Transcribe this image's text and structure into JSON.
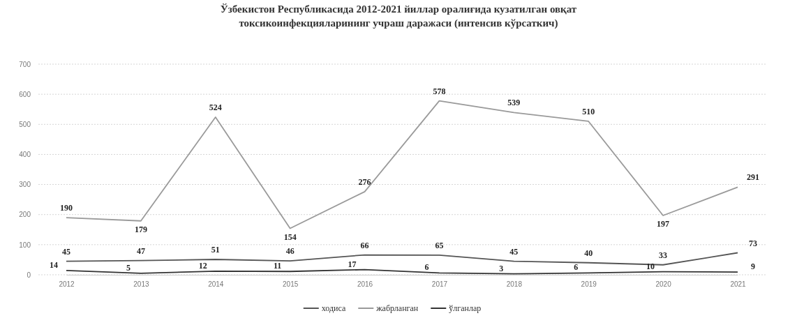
{
  "chart_data": {
    "type": "line",
    "title": "Ўзбекистон Республикасида 2012-2021 йиллар оралиғида кузатилган овқат токсикоинфекцияларининг учраш даражаси (интенсив кўрсаткич)",
    "categories": [
      "2012",
      "2013",
      "2014",
      "2015",
      "2016",
      "2017",
      "2018",
      "2019",
      "2020",
      "2021"
    ],
    "series": [
      {
        "name": "ходиса",
        "color": "#555555",
        "values": [
          45,
          47,
          51,
          46,
          66,
          65,
          45,
          40,
          33,
          73
        ]
      },
      {
        "name": "жабрланган",
        "color": "#9a9a9a",
        "values": [
          190,
          179,
          524,
          154,
          276,
          578,
          539,
          510,
          197,
          291
        ]
      },
      {
        "name": "ўлганлар",
        "color": "#333333",
        "values": [
          14,
          5,
          12,
          11,
          17,
          6,
          3,
          6,
          10,
          9
        ]
      }
    ],
    "ylim": [
      0,
      700
    ],
    "yticks": [
      0,
      100,
      200,
      300,
      400,
      500,
      600,
      700
    ],
    "grid": "y",
    "legend": "bottom",
    "data_labels": true,
    "marker": "none"
  }
}
